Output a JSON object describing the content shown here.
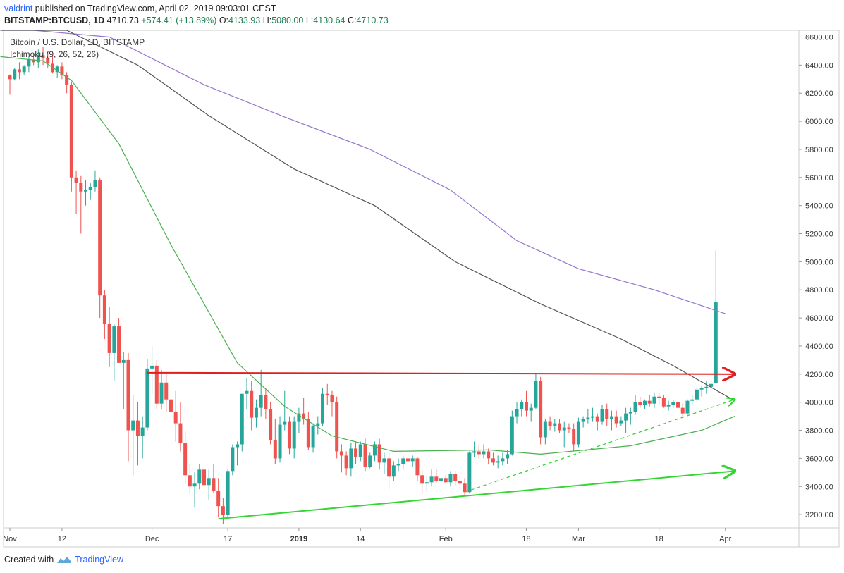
{
  "header": {
    "user": "valdrint",
    "published": "published on TradingView.com, April 02, 2019 09:03:01 CEST",
    "symbol": "BITSTAMP:BTCUSD, 1D",
    "last": "4710.73",
    "change": "+574.41 (+13.89%)",
    "o_label": "O:",
    "o": "4133.93",
    "h_label": "H:",
    "h": "5080.00",
    "l_label": "L:",
    "l": "4130.64",
    "c_label": "C:",
    "c": "4710.73"
  },
  "legend": {
    "title": "Bitcoin / U.S. Dollar, 1D, BITSTAMP",
    "indicator": "Ichimoku (9, 26, 52, 26)"
  },
  "footer": {
    "created": "Created with",
    "brand": "TradingView"
  },
  "chart_data": {
    "type": "candlestick",
    "ylim": [
      3100,
      6650
    ],
    "y_ticks": [
      "3200.00",
      "3400.00",
      "3600.00",
      "3800.00",
      "4000.00",
      "4200.00",
      "4400.00",
      "4600.00",
      "4800.00",
      "5000.00",
      "5200.00",
      "5400.00",
      "5600.00",
      "5800.00",
      "6000.00",
      "6200.00",
      "6400.00",
      "6600.00"
    ],
    "x_ticks": [
      {
        "label": "Nov",
        "day": 0
      },
      {
        "label": "12",
        "day": 11
      },
      {
        "label": "Dec",
        "day": 30
      },
      {
        "label": "17",
        "day": 46
      },
      {
        "label": "2019",
        "day": 61
      },
      {
        "label": "14",
        "day": 74
      },
      {
        "label": "Feb",
        "day": 92
      },
      {
        "label": "18",
        "day": 109
      },
      {
        "label": "Mar",
        "day": 120
      },
      {
        "label": "18",
        "day": 137
      },
      {
        "label": "Apr",
        "day": 151
      }
    ],
    "colors": {
      "up": "#26a69a",
      "down": "#ef5350",
      "purple": "#9575cd",
      "gray": "#555555",
      "green": "#4caf50",
      "resistance": "#e01e1e",
      "support": "#33d633",
      "dashed": "#33d633"
    },
    "candles": [
      [
        6326,
        6334,
        6190,
        6300
      ],
      [
        6300,
        6380,
        6290,
        6370
      ],
      [
        6370,
        6420,
        6300,
        6350
      ],
      [
        6350,
        6400,
        6330,
        6390
      ],
      [
        6390,
        6460,
        6350,
        6440
      ],
      [
        6440,
        6480,
        6400,
        6420
      ],
      [
        6420,
        6510,
        6380,
        6470
      ],
      [
        6470,
        6530,
        6400,
        6450
      ],
      [
        6450,
        6490,
        6380,
        6410
      ],
      [
        6410,
        6470,
        6340,
        6350
      ],
      [
        6350,
        6400,
        6310,
        6390
      ],
      [
        6390,
        6420,
        6300,
        6330
      ],
      [
        6330,
        6350,
        6200,
        6260
      ],
      [
        6260,
        6280,
        5500,
        5600
      ],
      [
        5600,
        5650,
        5340,
        5560
      ],
      [
        5560,
        5610,
        5200,
        5500
      ],
      [
        5500,
        5580,
        5400,
        5510
      ],
      [
        5510,
        5560,
        5440,
        5530
      ],
      [
        5530,
        5650,
        5500,
        5580
      ],
      [
        5580,
        5600,
        4600,
        4760
      ],
      [
        4760,
        4800,
        4450,
        4560
      ],
      [
        4560,
        4680,
        4250,
        4350
      ],
      [
        4350,
        4560,
        4150,
        4540
      ],
      [
        4540,
        4600,
        4300,
        4280
      ],
      [
        4280,
        4360,
        3950,
        4300
      ],
      [
        4300,
        4350,
        3580,
        3800
      ],
      [
        3800,
        4050,
        3480,
        3870
      ],
      [
        3870,
        4000,
        3550,
        3760
      ],
      [
        3760,
        3900,
        3600,
        3820
      ],
      [
        3820,
        4310,
        3800,
        4240
      ],
      [
        4240,
        4400,
        4060,
        4260
      ],
      [
        4260,
        4300,
        3950,
        3990
      ],
      [
        3990,
        4230,
        3950,
        4140
      ],
      [
        4140,
        4200,
        3930,
        4020
      ],
      [
        4020,
        4100,
        3880,
        3930
      ],
      [
        3930,
        4080,
        3720,
        3850
      ],
      [
        3850,
        4000,
        3650,
        3710
      ],
      [
        3710,
        3800,
        3420,
        3480
      ],
      [
        3480,
        3560,
        3350,
        3400
      ],
      [
        3400,
        3500,
        3250,
        3420
      ],
      [
        3420,
        3560,
        3380,
        3520
      ],
      [
        3520,
        3600,
        3350,
        3410
      ],
      [
        3410,
        3520,
        3300,
        3460
      ],
      [
        3460,
        3560,
        3350,
        3370
      ],
      [
        3370,
        3460,
        3180,
        3260
      ],
      [
        3260,
        3320,
        3130,
        3200
      ],
      [
        3200,
        3520,
        3170,
        3510
      ],
      [
        3510,
        3700,
        3480,
        3680
      ],
      [
        3680,
        3720,
        3550,
        3700
      ],
      [
        3700,
        4050,
        3650,
        4060
      ],
      [
        4060,
        4170,
        3950,
        4080
      ],
      [
        4080,
        4150,
        3800,
        3890
      ],
      [
        3890,
        4020,
        3820,
        3960
      ],
      [
        3960,
        4230,
        3900,
        4050
      ],
      [
        4050,
        4100,
        3880,
        3950
      ],
      [
        3950,
        4000,
        3700,
        3730
      ],
      [
        3730,
        3880,
        3560,
        3600
      ],
      [
        3600,
        3900,
        3570,
        3840
      ],
      [
        3840,
        4080,
        3800,
        3860
      ],
      [
        3860,
        3900,
        3630,
        3670
      ],
      [
        3670,
        3900,
        3600,
        3860
      ],
      [
        3860,
        3960,
        3780,
        3920
      ],
      [
        3920,
        4030,
        3840,
        3880
      ],
      [
        3880,
        3930,
        3660,
        3680
      ],
      [
        3680,
        3850,
        3640,
        3830
      ],
      [
        3830,
        3900,
        3770,
        3850
      ],
      [
        3850,
        4100,
        3830,
        4060
      ],
      [
        4060,
        4130,
        3980,
        4050
      ],
      [
        4050,
        4080,
        3900,
        4000
      ],
      [
        4000,
        4040,
        3600,
        3650
      ],
      [
        3650,
        3700,
        3500,
        3620
      ],
      [
        3620,
        3650,
        3480,
        3530
      ],
      [
        3530,
        3710,
        3470,
        3670
      ],
      [
        3670,
        3720,
        3560,
        3610
      ],
      [
        3610,
        3720,
        3580,
        3700
      ],
      [
        3700,
        3740,
        3510,
        3540
      ],
      [
        3540,
        3640,
        3530,
        3620
      ],
      [
        3620,
        3720,
        3580,
        3700
      ],
      [
        3700,
        3740,
        3520,
        3570
      ],
      [
        3570,
        3640,
        3490,
        3600
      ],
      [
        3600,
        3650,
        3380,
        3470
      ],
      [
        3470,
        3580,
        3440,
        3550
      ],
      [
        3550,
        3600,
        3510,
        3560
      ],
      [
        3560,
        3620,
        3520,
        3600
      ],
      [
        3600,
        3640,
        3510,
        3580
      ],
      [
        3580,
        3620,
        3540,
        3600
      ],
      [
        3600,
        3610,
        3440,
        3480
      ],
      [
        3480,
        3520,
        3350,
        3420
      ],
      [
        3420,
        3480,
        3370,
        3430
      ],
      [
        3430,
        3520,
        3400,
        3470
      ],
      [
        3470,
        3520,
        3430,
        3440
      ],
      [
        3440,
        3500,
        3380,
        3460
      ],
      [
        3460,
        3480,
        3420,
        3430
      ],
      [
        3430,
        3510,
        3400,
        3490
      ],
      [
        3490,
        3510,
        3410,
        3440
      ],
      [
        3440,
        3470,
        3390,
        3420
      ],
      [
        3420,
        3460,
        3340,
        3360
      ],
      [
        3360,
        3650,
        3350,
        3640
      ],
      [
        3640,
        3720,
        3610,
        3650
      ],
      [
        3650,
        3700,
        3600,
        3630
      ],
      [
        3630,
        3700,
        3600,
        3650
      ],
      [
        3650,
        3670,
        3560,
        3600
      ],
      [
        3600,
        3640,
        3550,
        3570
      ],
      [
        3570,
        3620,
        3530,
        3580
      ],
      [
        3580,
        3640,
        3550,
        3600
      ],
      [
        3600,
        3660,
        3560,
        3630
      ],
      [
        3630,
        3940,
        3620,
        3900
      ],
      [
        3900,
        4000,
        3850,
        3950
      ],
      [
        3950,
        4020,
        3900,
        4000
      ],
      [
        4000,
        4080,
        3900,
        3940
      ],
      [
        3940,
        3990,
        3860,
        3960
      ],
      [
        3960,
        4200,
        3950,
        4150
      ],
      [
        4150,
        4180,
        3700,
        3750
      ],
      [
        3750,
        3880,
        3700,
        3860
      ],
      [
        3860,
        3900,
        3800,
        3830
      ],
      [
        3830,
        3880,
        3790,
        3850
      ],
      [
        3850,
        3880,
        3780,
        3800
      ],
      [
        3800,
        3860,
        3680,
        3820
      ],
      [
        3820,
        3850,
        3780,
        3810
      ],
      [
        3810,
        3850,
        3650,
        3700
      ],
      [
        3700,
        3890,
        3680,
        3860
      ],
      [
        3860,
        3900,
        3820,
        3880
      ],
      [
        3880,
        3950,
        3850,
        3890
      ],
      [
        3890,
        3960,
        3860,
        3900
      ],
      [
        3900,
        3920,
        3800,
        3860
      ],
      [
        3860,
        3980,
        3840,
        3950
      ],
      [
        3950,
        3990,
        3830,
        3880
      ],
      [
        3880,
        3940,
        3800,
        3900
      ],
      [
        3900,
        3940,
        3820,
        3850
      ],
      [
        3850,
        3900,
        3830,
        3870
      ],
      [
        3870,
        3960,
        3780,
        3920
      ],
      [
        3920,
        3960,
        3840,
        3930
      ],
      [
        3930,
        4050,
        3910,
        4000
      ],
      [
        4000,
        4040,
        3960,
        3980
      ],
      [
        3980,
        4020,
        3950,
        4010
      ],
      [
        4010,
        4050,
        3970,
        3990
      ],
      [
        3990,
        4070,
        3960,
        4040
      ],
      [
        4040,
        4070,
        3980,
        4030
      ],
      [
        4030,
        4050,
        3960,
        3970
      ],
      [
        3970,
        4010,
        3940,
        3980
      ],
      [
        3980,
        4020,
        3960,
        4000
      ],
      [
        4000,
        4020,
        3940,
        3960
      ],
      [
        3960,
        3990,
        3890,
        3920
      ],
      [
        3920,
        4020,
        3910,
        4010
      ],
      [
        4010,
        4050,
        3980,
        4020
      ],
      [
        4020,
        4110,
        4000,
        4090
      ],
      [
        4090,
        4120,
        4040,
        4100
      ],
      [
        4100,
        4150,
        4060,
        4110
      ],
      [
        4110,
        4160,
        4080,
        4130
      ],
      [
        4133.93,
        5080.0,
        4130.64,
        4710.73
      ]
    ],
    "lines": {
      "purple": [
        [
          -2,
          6700
        ],
        [
          5,
          6700
        ],
        [
          21,
          6600
        ],
        [
          41,
          6260
        ],
        [
          58,
          6030
        ],
        [
          76,
          5800
        ],
        [
          93,
          5510
        ],
        [
          107,
          5150
        ],
        [
          120,
          4950
        ],
        [
          136,
          4800
        ],
        [
          151,
          4630
        ]
      ],
      "gray": [
        [
          -2,
          6700
        ],
        [
          12,
          6650
        ],
        [
          27,
          6400
        ],
        [
          42,
          6040
        ],
        [
          60,
          5660
        ],
        [
          77,
          5400
        ],
        [
          94,
          5000
        ],
        [
          112,
          4700
        ],
        [
          129,
          4450
        ],
        [
          140,
          4260
        ],
        [
          153,
          4010
        ]
      ],
      "green": [
        [
          -2,
          6460
        ],
        [
          7,
          6430
        ],
        [
          13,
          6290
        ],
        [
          23,
          5840
        ],
        [
          34,
          5120
        ],
        [
          48,
          4280
        ],
        [
          58,
          3970
        ],
        [
          68,
          3760
        ],
        [
          81,
          3650
        ],
        [
          101,
          3660
        ],
        [
          112,
          3630
        ],
        [
          131,
          3690
        ],
        [
          146,
          3800
        ],
        [
          153,
          3900
        ]
      ]
    },
    "annotations": {
      "resistance": [
        [
          29,
          4210
        ],
        [
          153,
          4200
        ]
      ],
      "support": [
        [
          44,
          3170
        ],
        [
          153,
          3510
        ]
      ],
      "dashed": [
        [
          96,
          3360
        ],
        [
          153,
          4020
        ]
      ]
    }
  }
}
